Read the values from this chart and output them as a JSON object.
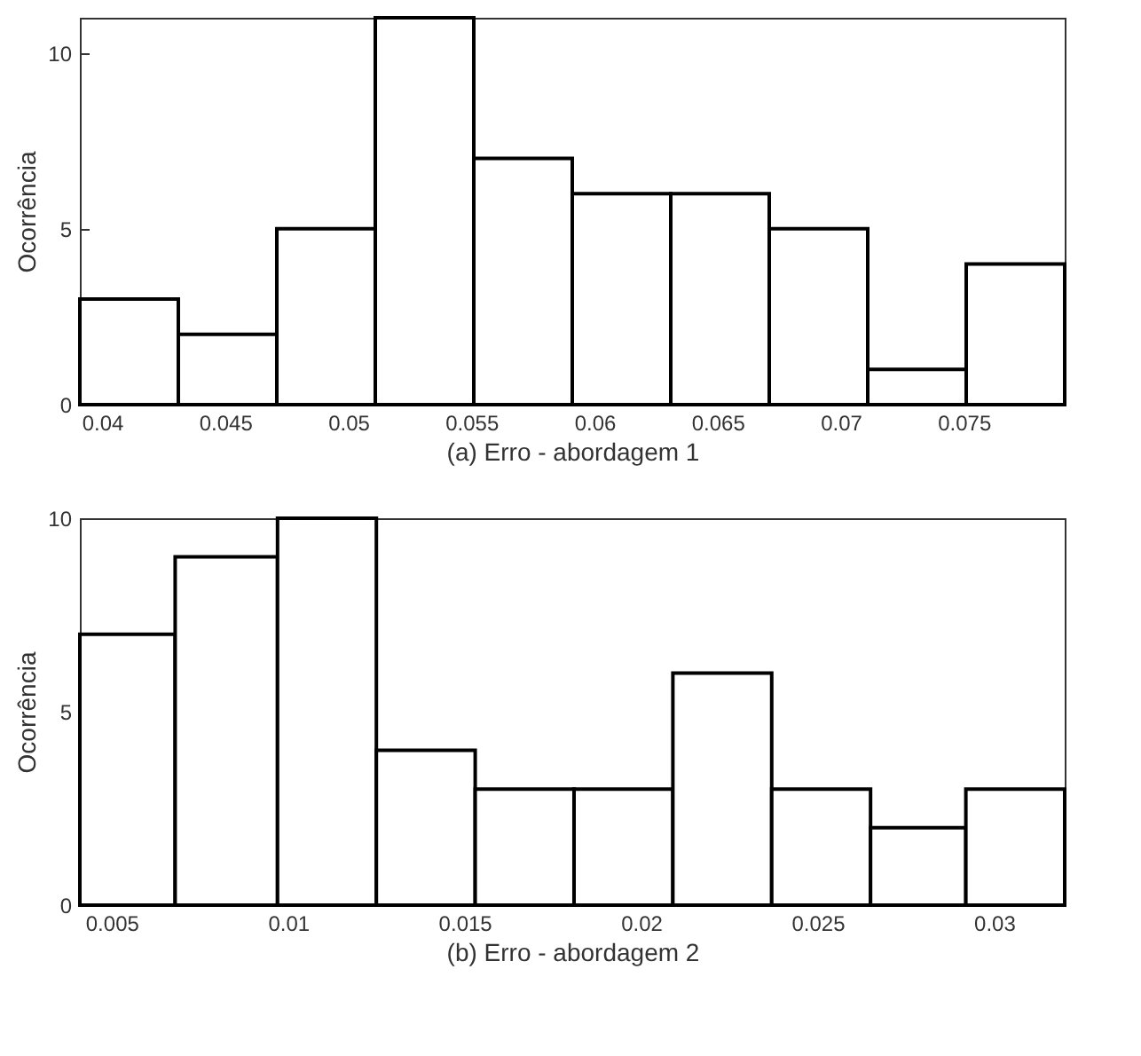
{
  "chart_data": [
    {
      "type": "histogram",
      "xlabel": "(a) Erro - abordagem 1",
      "ylabel": "Ocorrência",
      "color": "#000000",
      "bins": [
        0.0391,
        0.0431,
        0.0471,
        0.0511,
        0.0551,
        0.0591,
        0.0631,
        0.0671,
        0.0711,
        0.0751,
        0.0791
      ],
      "values": [
        3,
        2,
        5,
        11,
        7,
        6,
        6,
        5,
        1,
        4
      ],
      "xlim": [
        0.0391,
        0.0791
      ],
      "xticks": [
        0.04,
        0.045,
        0.05,
        0.055,
        0.06,
        0.065,
        0.07,
        0.075
      ],
      "ylim": [
        0,
        11
      ],
      "yticks": [
        0,
        5,
        10
      ],
      "grid": false
    },
    {
      "type": "histogram",
      "xlabel": "(b) Erro - abordagem 2",
      "ylabel": "Ocorrência",
      "color": "#000000",
      "bins": [
        0.0041,
        0.0068,
        0.0097,
        0.0125,
        0.0153,
        0.0181,
        0.0209,
        0.0237,
        0.0265,
        0.0292,
        0.032
      ],
      "values": [
        7,
        9,
        10,
        4,
        3,
        3,
        6,
        3,
        2,
        3
      ],
      "xlim": [
        0.0041,
        0.032
      ],
      "xticks": [
        0.005,
        0.01,
        0.015,
        0.02,
        0.025,
        0.03
      ],
      "ylim": [
        0,
        10
      ],
      "yticks": [
        0,
        5,
        10
      ],
      "grid": false
    }
  ]
}
